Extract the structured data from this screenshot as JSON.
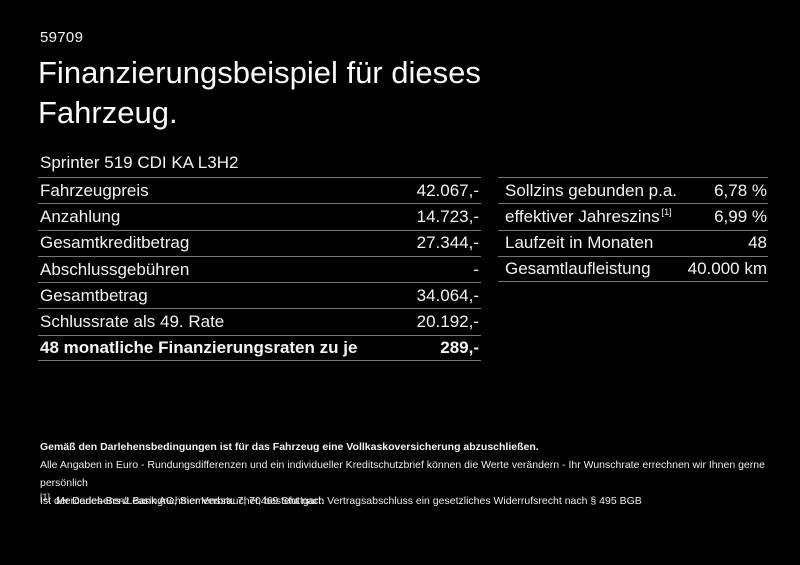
{
  "page": {
    "ref_number": "59709",
    "title": "Finanzierungsbeispiel für dieses Fahrzeug.",
    "vehicle_model": "Sprinter 519 CDI KA L3H2"
  },
  "finance_table": {
    "rows": [
      {
        "label": "Fahrzeugpreis",
        "value": "42.067,-"
      },
      {
        "label": "Anzahlung",
        "value": "14.723,-"
      },
      {
        "label": "Gesamtkreditbetrag",
        "value": "27.344,-"
      },
      {
        "label": "Abschlussgebühren",
        "value": "-"
      },
      {
        "label": "Gesamtbetrag",
        "value": "34.064,-"
      },
      {
        "label": "Schlussrate als 49. Rate",
        "value": "20.192,-"
      }
    ],
    "total_row": {
      "label": "48 monatliche Finanzierungsraten zu je",
      "value": "289,-"
    }
  },
  "conditions_table": {
    "rows": [
      {
        "label": "Sollzins gebunden p.a.",
        "footnote_marker": "",
        "value": "6,78 %"
      },
      {
        "label": "effektiver Jahreszins",
        "footnote_marker": "[1]",
        "value": "6,99 %"
      },
      {
        "label": "Laufzeit in Monaten",
        "footnote_marker": "",
        "value": "48"
      },
      {
        "label": "Gesamtlaufleistung",
        "footnote_marker": "",
        "value": "40.000 km"
      }
    ]
  },
  "footer": {
    "insurance_note": "Gemäß den Darlehensbedingungen ist für das Fahrzeug eine Vollkaskoversicherung abzuschließen.",
    "disclaimer_line1": "Alle Angaben in Euro - Rundungsdifferenzen und ein individueller Kreditschutzbrief können die Werte verändern - Ihr Wunschrate errechnen wir Ihnen gerne persönlich",
    "disclaimer_line2": "Ist der Darlehens-/Leasingnehmer Verbraucher, besteht nach Vertragsabschluss ein gesetzliches Widerrufsrecht nach § 495 BGB",
    "footnote_marker": "[1]",
    "footnote_text": "Mercedes-Benz Bank AG, Siemensstr. 7, 70469 Stuttgart."
  },
  "colors": {
    "background": "#000000",
    "text": "#f4f4f4",
    "divider": "#757575"
  }
}
